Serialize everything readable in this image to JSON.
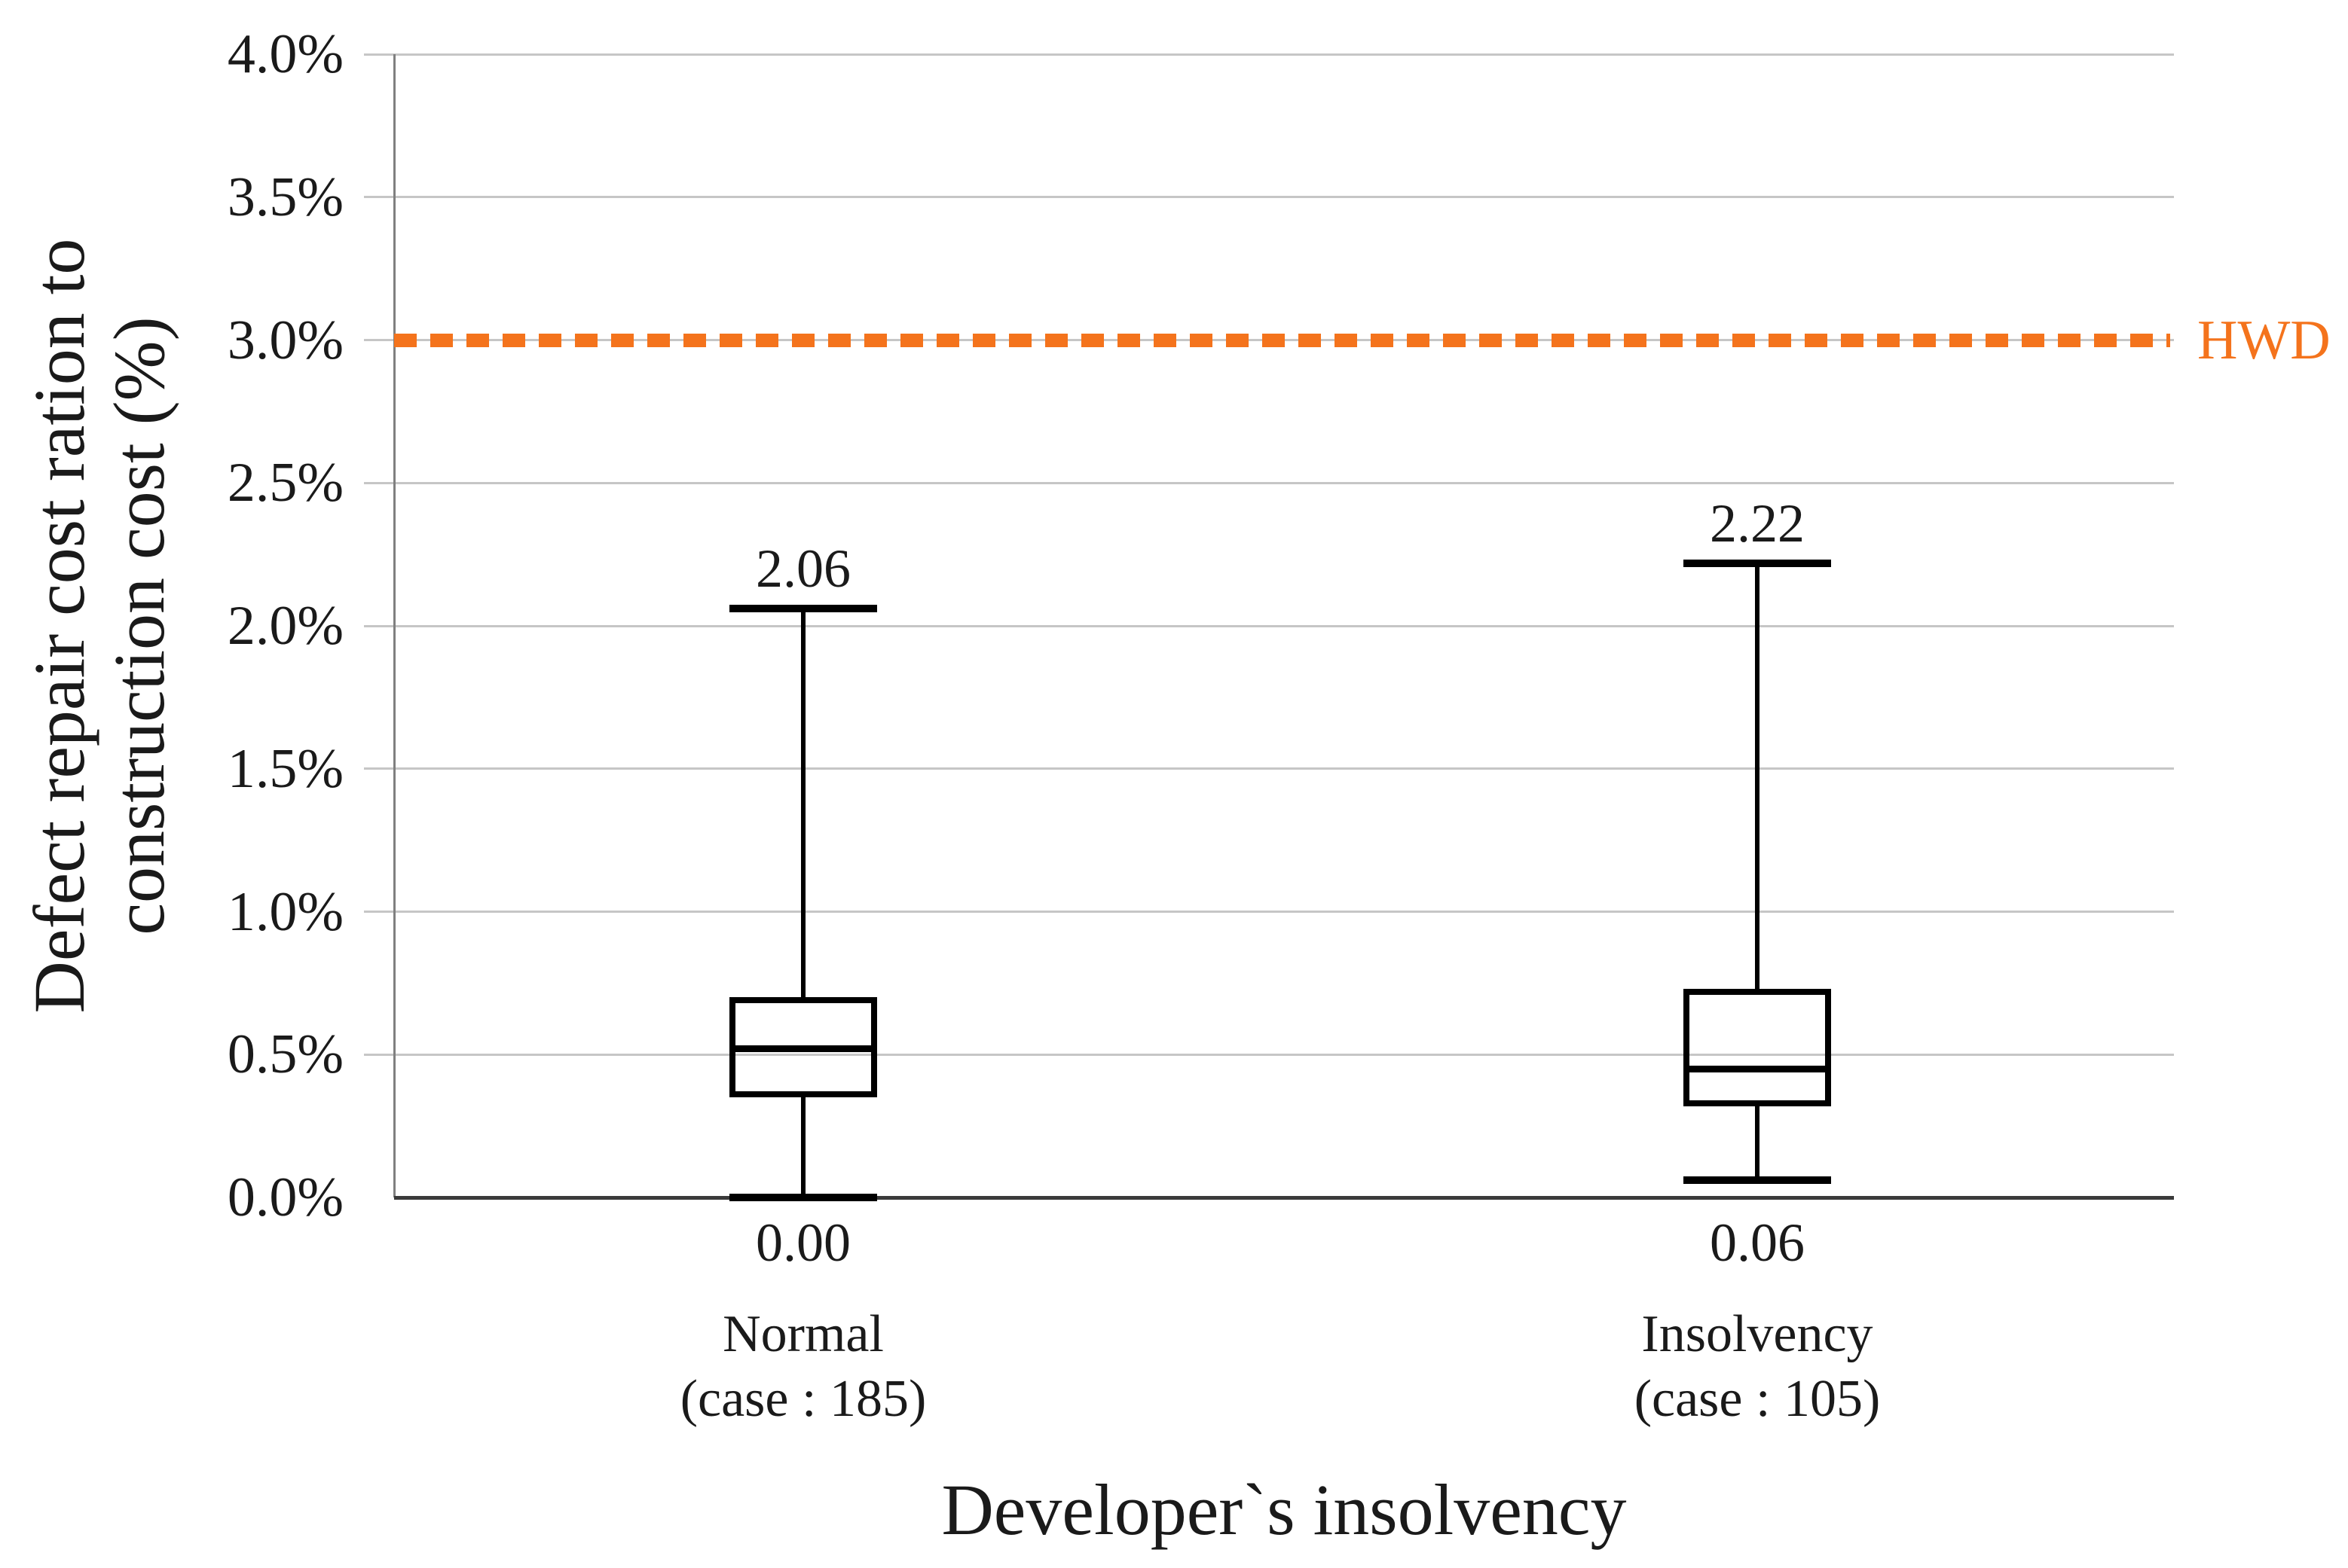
{
  "chart_data": {
    "type": "box",
    "title": "",
    "xlabel": "Developer`s insolvency",
    "ylabel_lines": [
      "Defect repair cost ration to",
      "construction cost (%)"
    ],
    "ylabel_full": "Defect repair cost ration to construction cost (%)",
    "y_axis": {
      "min": 0,
      "max": 4,
      "step": 0.5,
      "unit": "%"
    },
    "y_tick_labels": [
      "0.0%",
      "0.5%",
      "1.0%",
      "1.5%",
      "2.0%",
      "2.5%",
      "3.0%",
      "3.5%",
      "4.0%"
    ],
    "grid": true,
    "legend_position": "none",
    "categories": [
      {
        "label": "Normal",
        "sublabel": "(case : 185)",
        "whisker_low": 0.0,
        "q1": 0.35,
        "median": 0.52,
        "q3": 0.7,
        "whisker_high": 2.06,
        "whisker_high_label": "2.06",
        "whisker_low_label": "0.00"
      },
      {
        "label": "Insolvency",
        "sublabel": "(case : 105)",
        "whisker_low": 0.06,
        "q1": 0.32,
        "median": 0.45,
        "q3": 0.73,
        "whisker_high": 2.22,
        "whisker_high_label": "2.22",
        "whisker_low_label": "0.06"
      }
    ],
    "reference_line": {
      "value": 3.0,
      "label": "HWD",
      "style": "dotted"
    },
    "colors": {
      "reference": "#F4731C",
      "grid": "#C6C6C6",
      "axis_vertical": "#808080",
      "axis_horizontal": "#3A3A3A",
      "box": "#000000",
      "text": "#1A1A1A"
    }
  }
}
